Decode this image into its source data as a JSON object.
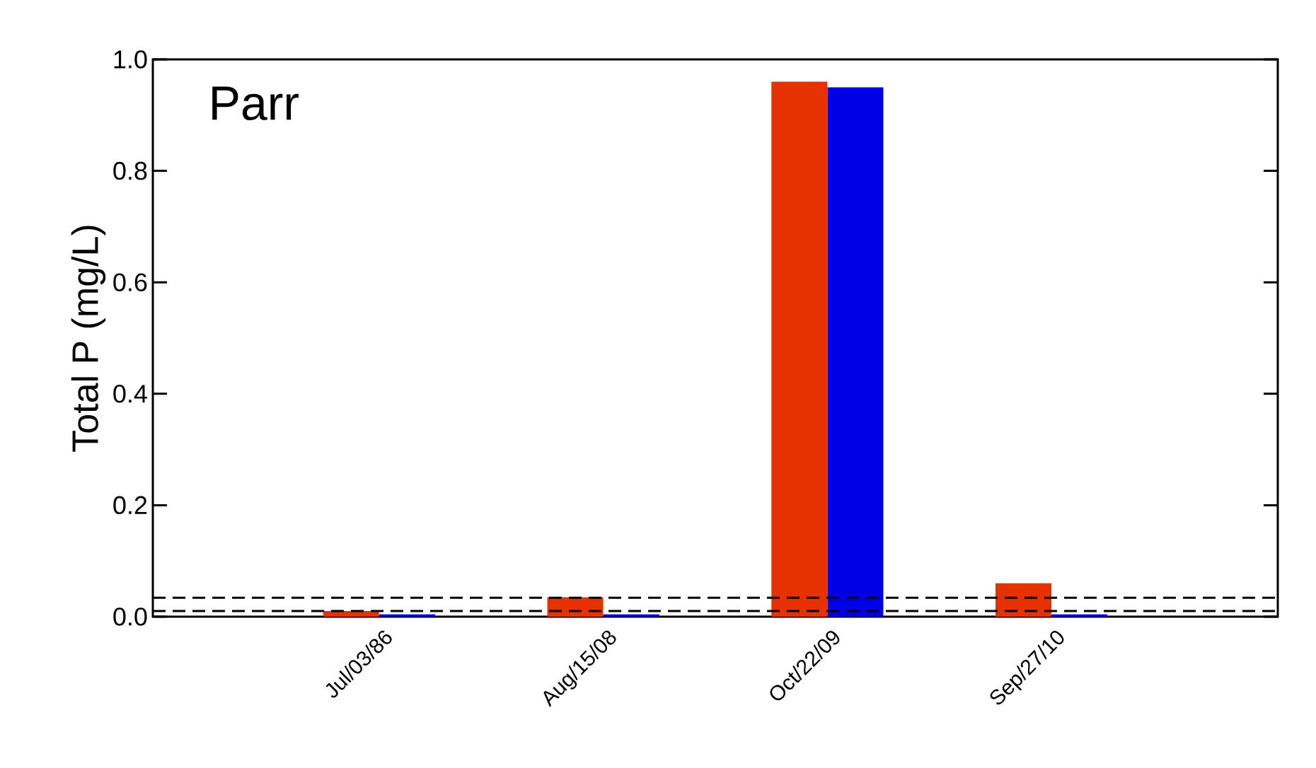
{
  "chart_data": {
    "type": "bar",
    "ylabel": "Total P (mg/L)",
    "annotations": [
      "Parr"
    ],
    "categories": [
      "Jul/03/86",
      "Aug/15/08",
      "Oct/22/09",
      "Sep/27/10"
    ],
    "series": [
      {
        "color": "#e63200",
        "values": [
          0.01,
          0.035,
          0.96,
          0.06
        ]
      },
      {
        "color": "#0000e6",
        "values": [
          0.004,
          0.004,
          0.95,
          0.004
        ]
      }
    ],
    "ylim": [
      0,
      1.0
    ],
    "yticks": [
      {
        "value": 0,
        "label": "0.0"
      },
      {
        "value": 0.2,
        "label": "0.2"
      },
      {
        "value": 0.4,
        "label": "0.4"
      },
      {
        "value": 0.6,
        "label": "0.6"
      },
      {
        "value": 0.8,
        "label": "0.8"
      },
      {
        "value": 1.0,
        "label": "1.0"
      }
    ],
    "ref_lines": [
      {
        "axis": "y",
        "value": 0.01,
        "color": "#000000",
        "line_style": "dashed"
      },
      {
        "axis": "y",
        "value": 0.034,
        "color": "#000000",
        "line_style": "dashed"
      }
    ]
  }
}
